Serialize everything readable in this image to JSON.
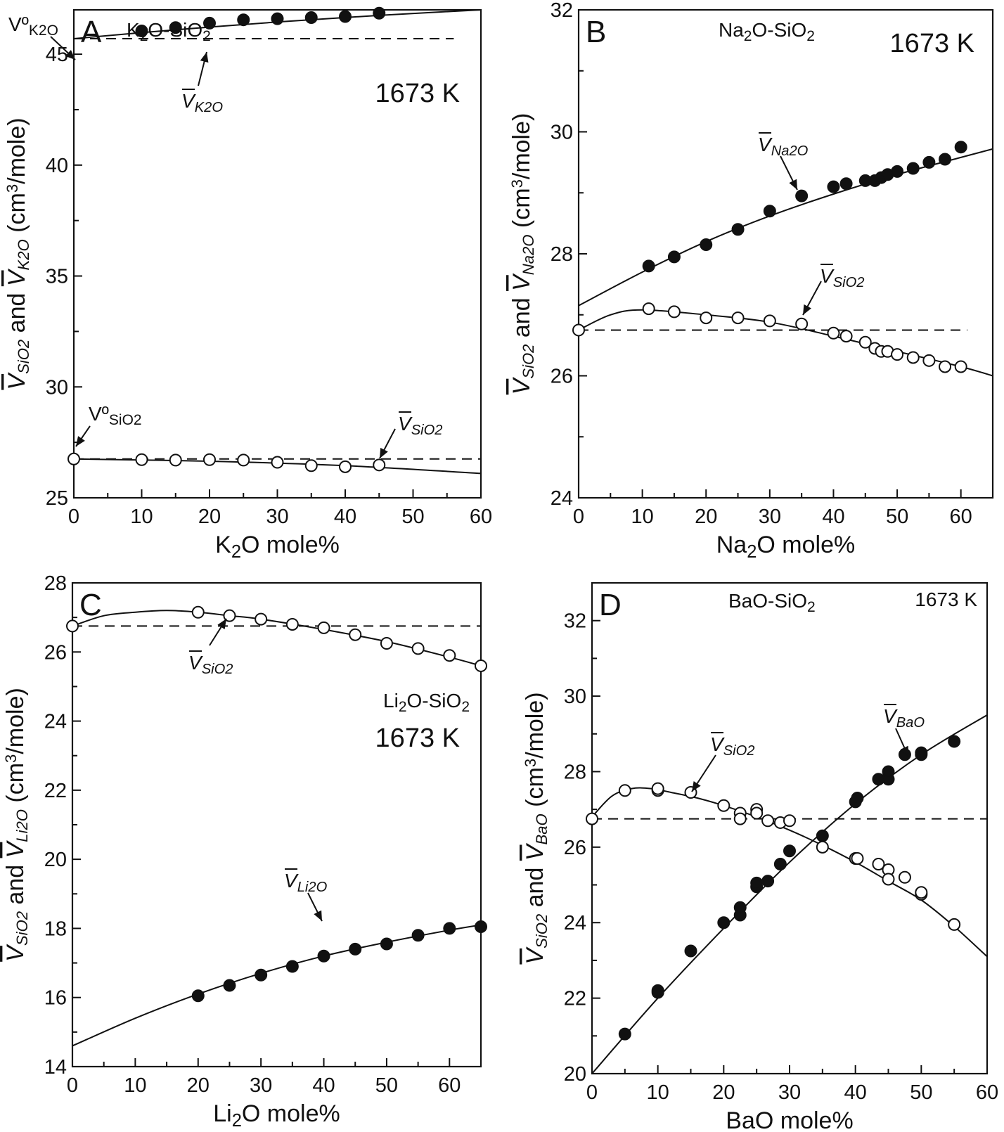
{
  "figure": {
    "panels": [
      {
        "letter": "A",
        "system": {
          "base": "K",
          "sub": "2",
          "rest": "O-SiO",
          "sub2": "2"
        },
        "temperature": "1673 K",
        "xlabel": {
          "pre": "K",
          "sub": "2",
          "post": "O mole%"
        },
        "ylabel": {
          "s1": "SiO2",
          "mid": " and ",
          "s2": "K2O",
          "unit": " (cm",
          "sup": "3",
          "tail": "/mole)"
        },
        "xticks": [
          "0",
          "10",
          "20",
          "30",
          "40",
          "50",
          "60"
        ],
        "yticks": [
          "25",
          "30",
          "35",
          "40",
          "45"
        ],
        "annotations": [
          {
            "label": "V",
            "sub": "K2O",
            "kind": "bar"
          },
          {
            "label": "V",
            "sub": "SiO2",
            "kind": "bar"
          },
          {
            "label": "Vº",
            "sub": "K2O",
            "kind": "plain"
          },
          {
            "label": "Vº",
            "sub": "SiO2",
            "kind": "plain"
          }
        ]
      },
      {
        "letter": "B",
        "system": {
          "base": "Na",
          "sub": "2",
          "rest": "O-SiO",
          "sub2": "2"
        },
        "temperature": "1673 K",
        "xlabel": {
          "pre": "Na",
          "sub": "2",
          "post": "O mole%"
        },
        "ylabel": {
          "s1": "SiO2",
          "mid": " and ",
          "s2": "Na2O",
          "unit": " (cm",
          "sup": "3",
          "tail": "/mole)"
        },
        "xticks": [
          "0",
          "10",
          "20",
          "30",
          "40",
          "50",
          "60"
        ],
        "yticks": [
          "24",
          "26",
          "28",
          "30",
          "32"
        ],
        "annotations": [
          {
            "label": "V",
            "sub": "Na2O",
            "kind": "bar"
          },
          {
            "label": "V",
            "sub": "SiO2",
            "kind": "bar"
          }
        ]
      },
      {
        "letter": "C",
        "system": {
          "base": "Li",
          "sub": "2",
          "rest": "O-SiO",
          "sub2": "2"
        },
        "temperature": "1673 K",
        "xlabel": {
          "pre": "Li",
          "sub": "2",
          "post": "O mole%"
        },
        "ylabel": {
          "s1": "SiO2",
          "mid": " and ",
          "s2": "Li2O",
          "unit": " (cm",
          "sup": "3",
          "tail": "/mole)"
        },
        "xticks": [
          "0",
          "10",
          "20",
          "30",
          "40",
          "50",
          "60"
        ],
        "yticks": [
          "14",
          "16",
          "18",
          "20",
          "22",
          "24",
          "26",
          "28"
        ],
        "annotations": [
          {
            "label": "V",
            "sub": "SiO2",
            "kind": "bar"
          },
          {
            "label": "V",
            "sub": "Li2O",
            "kind": "bar"
          }
        ]
      },
      {
        "letter": "D",
        "system": {
          "base": "BaO-SiO",
          "sub": "2",
          "rest": "",
          "sub2": ""
        },
        "temperature": "1673 K",
        "xlabel": {
          "pre": "BaO mole%",
          "sub": "",
          "post": ""
        },
        "ylabel": {
          "s1": "SiO2",
          "mid": " and ",
          "s2": "BaO",
          "unit": " (cm",
          "sup": "3",
          "tail": "/mole)"
        },
        "xticks": [
          "0",
          "10",
          "20",
          "30",
          "40",
          "50",
          "60"
        ],
        "yticks": [
          "20",
          "22",
          "24",
          "26",
          "28",
          "30",
          "32"
        ],
        "annotations": [
          {
            "label": "V",
            "sub": "SiO2",
            "kind": "bar"
          },
          {
            "label": "V",
            "sub": "BaO",
            "kind": "bar"
          }
        ]
      }
    ]
  },
  "chart_data": [
    {
      "type": "scatter",
      "panel": "A",
      "title": "K2O-SiO2 1673 K",
      "xlabel": "K2O mole%",
      "ylabel": "V̄SiO2 and V̄K2O (cm3/mole)",
      "xlim": [
        0,
        60
      ],
      "ylim": [
        25,
        47
      ],
      "grid": false,
      "series": [
        {
          "name": "V̄K2O",
          "marker": "filled",
          "x": [
            10,
            15,
            20,
            25,
            30,
            35,
            40,
            45
          ],
          "y": [
            46.05,
            46.2,
            46.4,
            46.55,
            46.6,
            46.65,
            46.7,
            46.85
          ]
        },
        {
          "name": "V̄SiO2",
          "marker": "open",
          "x": [
            0,
            10,
            15,
            20,
            25,
            30,
            35,
            40,
            45
          ],
          "y": [
            26.75,
            26.72,
            26.7,
            26.72,
            26.7,
            26.6,
            26.45,
            26.4,
            26.48
          ]
        }
      ],
      "fits": [
        {
          "x": [
            0,
            15,
            30,
            45,
            60
          ],
          "y": [
            45.7,
            46.1,
            46.45,
            46.75,
            47.0
          ]
        },
        {
          "x": [
            0,
            20,
            40,
            60
          ],
          "y": [
            26.75,
            26.65,
            26.45,
            26.1
          ]
        }
      ],
      "reference_lines": [
        {
          "y": 45.7,
          "x": [
            0,
            56
          ],
          "style": "dashed"
        },
        {
          "y": 26.75,
          "x": [
            0,
            60
          ],
          "style": "dashed"
        }
      ]
    },
    {
      "type": "scatter",
      "panel": "B",
      "title": "Na2O-SiO2 1673 K",
      "xlabel": "Na2O mole%",
      "ylabel": "V̄SiO2 and V̄Na2O (cm3/mole)",
      "xlim": [
        0,
        65
      ],
      "ylim": [
        24,
        32
      ],
      "grid": false,
      "series": [
        {
          "name": "V̄Na2O",
          "marker": "filled",
          "x": [
            11,
            15,
            20,
            25,
            30,
            35,
            40,
            42,
            45,
            46.5,
            47.5,
            48.5,
            50,
            52.5,
            55,
            57.5,
            60
          ],
          "y": [
            27.8,
            27.95,
            28.15,
            28.4,
            28.7,
            28.95,
            29.1,
            29.15,
            29.2,
            29.2,
            29.25,
            29.3,
            29.35,
            29.4,
            29.5,
            29.55,
            29.75
          ]
        },
        {
          "name": "V̄SiO2",
          "marker": "open",
          "x": [
            0,
            11,
            15,
            20,
            25,
            30,
            35,
            40,
            42,
            45,
            46.5,
            47.5,
            48.5,
            50,
            52.5,
            55,
            57.5,
            60
          ],
          "y": [
            26.75,
            27.1,
            27.05,
            26.95,
            26.95,
            26.9,
            26.85,
            26.7,
            26.65,
            26.55,
            26.45,
            26.4,
            26.4,
            26.35,
            26.3,
            26.25,
            26.15,
            26.15
          ]
        }
      ],
      "fits": [
        {
          "x": [
            0,
            10,
            20,
            30,
            40,
            50,
            60,
            65
          ],
          "y": [
            27.15,
            27.7,
            28.2,
            28.62,
            28.98,
            29.3,
            29.58,
            29.72
          ]
        },
        {
          "x": [
            0,
            5,
            10,
            20,
            30,
            40,
            50,
            60,
            65
          ],
          "y": [
            26.75,
            27.0,
            27.08,
            27.0,
            26.88,
            26.65,
            26.4,
            26.15,
            26.0
          ]
        }
      ],
      "reference_lines": [
        {
          "y": 26.75,
          "x": [
            0,
            61
          ],
          "style": "dashed"
        }
      ]
    },
    {
      "type": "scatter",
      "panel": "C",
      "title": "Li2O-SiO2 1673 K",
      "xlabel": "Li2O mole%",
      "ylabel": "V̄SiO2 and V̄Li2O (cm3/mole)",
      "xlim": [
        0,
        65
      ],
      "ylim": [
        14,
        28
      ],
      "grid": false,
      "series": [
        {
          "name": "V̄Li2O",
          "marker": "filled",
          "x": [
            20,
            25,
            30,
            35,
            40,
            45,
            50,
            55,
            60,
            65
          ],
          "y": [
            16.05,
            16.35,
            16.65,
            16.9,
            17.2,
            17.4,
            17.55,
            17.8,
            18.0,
            18.05
          ]
        },
        {
          "name": "V̄SiO2",
          "marker": "open",
          "x": [
            0,
            20,
            25,
            30,
            35,
            40,
            45,
            50,
            55,
            60,
            65
          ],
          "y": [
            26.75,
            27.15,
            27.05,
            26.95,
            26.8,
            26.7,
            26.5,
            26.25,
            26.1,
            25.9,
            25.6
          ]
        }
      ],
      "fits": [
        {
          "x": [
            0,
            10,
            20,
            30,
            40,
            50,
            60,
            65
          ],
          "y": [
            14.6,
            15.4,
            16.1,
            16.7,
            17.2,
            17.6,
            17.95,
            18.1
          ]
        },
        {
          "x": [
            0,
            5,
            10,
            15,
            20,
            25,
            30,
            40,
            50,
            60,
            65
          ],
          "y": [
            26.75,
            27.05,
            27.15,
            27.2,
            27.15,
            27.05,
            26.95,
            26.65,
            26.3,
            25.85,
            25.6
          ]
        }
      ],
      "reference_lines": [
        {
          "y": 26.75,
          "x": [
            0,
            65
          ],
          "style": "dashed"
        }
      ]
    },
    {
      "type": "scatter",
      "panel": "D",
      "title": "BaO-SiO2 1673 K",
      "xlabel": "BaO mole%",
      "ylabel": "V̄SiO2 and V̄BaO (cm3/mole)",
      "xlim": [
        0,
        60
      ],
      "ylim": [
        20,
        33
      ],
      "grid": false,
      "series": [
        {
          "name": "V̄BaO",
          "marker": "filled",
          "x": [
            5,
            10,
            10,
            15,
            20,
            22.5,
            22.5,
            25,
            25,
            26.7,
            28.6,
            30,
            35,
            40,
            40.3,
            43.5,
            45,
            45,
            47.5,
            50,
            50,
            55
          ],
          "y": [
            21.05,
            22.15,
            22.2,
            23.25,
            24.0,
            24.2,
            24.4,
            24.95,
            25.05,
            25.1,
            25.55,
            25.9,
            26.3,
            27.2,
            27.3,
            27.8,
            27.8,
            28.0,
            28.45,
            28.45,
            28.5,
            28.8
          ]
        },
        {
          "name": "V̄SiO2",
          "marker": "open",
          "x": [
            0,
            5,
            10,
            10,
            15,
            20,
            22.5,
            22.5,
            25,
            25,
            26.7,
            28.6,
            30,
            35,
            40,
            40.3,
            43.5,
            45,
            45,
            47.5,
            50,
            50,
            55
          ],
          "y": [
            26.75,
            27.5,
            27.5,
            27.55,
            27.45,
            27.1,
            26.9,
            26.75,
            27.0,
            26.9,
            26.7,
            26.65,
            26.7,
            26.0,
            25.7,
            25.7,
            25.55,
            25.4,
            25.15,
            25.2,
            24.75,
            24.8,
            23.95
          ]
        }
      ],
      "fits": [
        {
          "x": [
            0,
            10,
            20,
            30,
            40,
            50,
            60
          ],
          "y": [
            20.0,
            22.0,
            23.85,
            25.6,
            27.15,
            28.45,
            29.5
          ]
        },
        {
          "x": [
            0,
            3,
            6,
            9,
            12,
            16,
            20,
            25,
            30,
            35,
            40,
            45,
            50,
            55,
            60
          ],
          "y": [
            26.8,
            27.35,
            27.55,
            27.55,
            27.45,
            27.3,
            27.1,
            26.8,
            26.45,
            26.05,
            25.6,
            25.1,
            24.6,
            23.9,
            23.1
          ]
        }
      ],
      "reference_lines": [
        {
          "y": 26.75,
          "x": [
            0,
            60
          ],
          "style": "dashed"
        }
      ]
    }
  ]
}
